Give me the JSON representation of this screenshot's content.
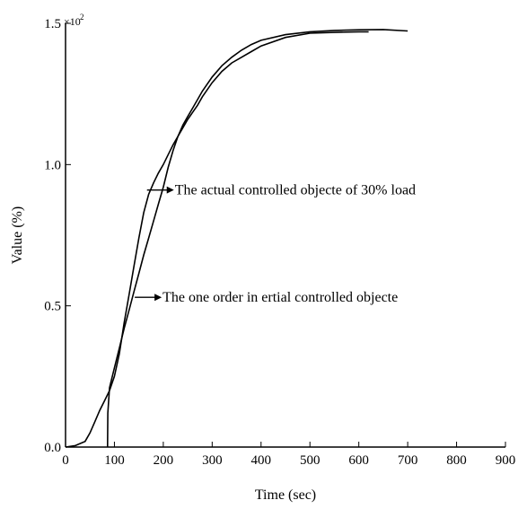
{
  "chart_data": {
    "type": "line",
    "title": "",
    "xlabel": "Time (sec)",
    "ylabel": "Value (%)",
    "xlim": [
      0,
      900
    ],
    "ylim": [
      0,
      150
    ],
    "x_ticks": [
      0,
      100,
      200,
      300,
      400,
      500,
      600,
      700,
      800,
      900
    ],
    "y_ticks": [
      0,
      50,
      100,
      150
    ],
    "y_tick_labels": [
      "0.0",
      "0.5",
      "1.0",
      "1.5"
    ],
    "y_multiplier": "×10",
    "y_multiplier_exp": "2",
    "grid": false,
    "series": [
      {
        "x": [
          0,
          20,
          40,
          50,
          60,
          70,
          80,
          90,
          100,
          110,
          120,
          130,
          140,
          150,
          160,
          170,
          180,
          190,
          200,
          210,
          220,
          230,
          240,
          250,
          260,
          270,
          280,
          300,
          320,
          340,
          360,
          380,
          400,
          450,
          500,
          550,
          600,
          620
        ],
        "y": [
          0,
          0.5,
          2,
          5,
          9,
          13,
          16.5,
          20,
          25,
          33,
          44,
          54,
          64,
          74,
          83,
          89.5,
          93.5,
          97,
          100,
          103.5,
          107,
          110,
          113,
          116,
          118.5,
          121,
          124,
          129,
          133,
          136,
          138,
          140,
          142,
          145,
          146.5,
          146.8,
          147,
          147
        ]
      },
      {
        "x": [
          86,
          86.5,
          90,
          100,
          110,
          120,
          130,
          140,
          150,
          160,
          170,
          180,
          190,
          200,
          210,
          220,
          230,
          240,
          250,
          260,
          270,
          280,
          300,
          320,
          340,
          360,
          380,
          400,
          450,
          500,
          550,
          600,
          650,
          700
        ],
        "y": [
          0,
          12,
          21,
          28,
          35,
          42,
          48.5,
          55,
          61.5,
          68,
          74,
          80,
          86,
          92,
          99,
          105,
          110,
          114,
          117,
          120,
          123,
          126,
          131,
          135,
          138,
          140.5,
          142.5,
          144,
          146,
          147,
          147.5,
          147.7,
          147.8,
          147.3
        ]
      }
    ],
    "annotations": [
      {
        "text": "The actual controlled objecte of 30% load",
        "x": 185,
        "y": 91
      },
      {
        "text": "The one order in ertial controlled objecte",
        "x": 160,
        "y": 53
      }
    ]
  }
}
